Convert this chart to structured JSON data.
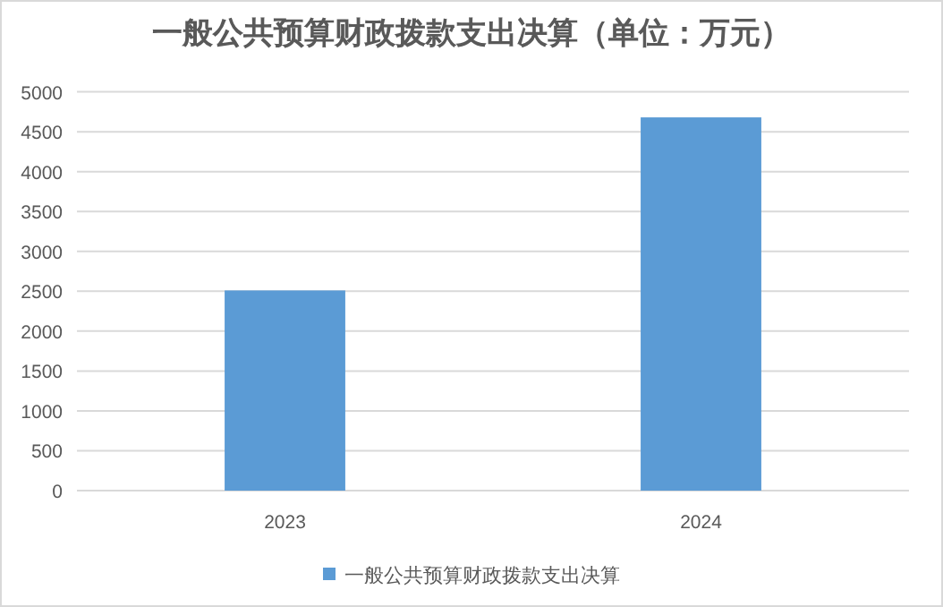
{
  "chart_data": {
    "type": "bar",
    "title": "一般公共预算财政拨款支出决算（单位：万元）",
    "categories": [
      "2023",
      "2024"
    ],
    "series": [
      {
        "name": "一般公共预算财政拨款支出决算",
        "color": "#5b9bd5",
        "values": [
          2510,
          4680
        ]
      }
    ],
    "ylim": [
      0,
      5000
    ],
    "yticks": [
      0,
      500,
      1000,
      1500,
      2000,
      2500,
      3000,
      3500,
      4000,
      4500,
      5000
    ],
    "grid": "y",
    "legend": "bottom"
  }
}
